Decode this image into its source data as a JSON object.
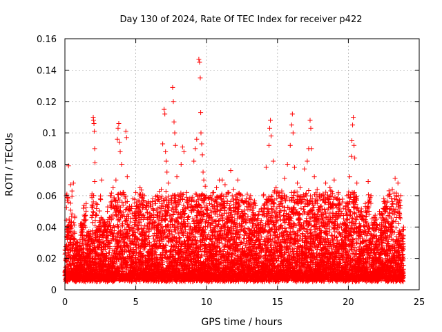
{
  "chart_data": {
    "type": "scatter",
    "title": "Day 130 of 2024, Rate Of TEC Index for receiver p422",
    "xlabel": "GPS time / hours",
    "ylabel": "ROTI / TECUs",
    "xlim": [
      0,
      25
    ],
    "ylim": [
      0,
      0.16
    ],
    "x_ticks": [
      "0",
      "5",
      "10",
      "15",
      "20",
      "25"
    ],
    "y_ticks": [
      "0",
      "0.02",
      "0.04",
      "0.06",
      "0.08",
      "0.1",
      "0.12",
      "0.14",
      "0.16"
    ],
    "grid": true,
    "marker": "+",
    "color": "#ff0000",
    "series": [
      {
        "points": [
          [
            0.05,
            0.025
          ],
          [
            0.1,
            0.06
          ],
          [
            0.25,
            0.079
          ],
          [
            0.3,
            0.045
          ],
          [
            0.4,
            0.067
          ],
          [
            0.5,
            0.063
          ],
          [
            0.55,
            0.035
          ],
          [
            0.6,
            0.068
          ],
          [
            0.7,
            0.047
          ],
          [
            0.9,
            0.03
          ],
          [
            1.1,
            0.042
          ],
          [
            1.3,
            0.052
          ],
          [
            1.5,
            0.055
          ],
          [
            1.7,
            0.036
          ],
          [
            1.9,
            0.06
          ],
          [
            2.0,
            0.11
          ],
          [
            2.02,
            0.108
          ],
          [
            2.05,
            0.106
          ],
          [
            2.08,
            0.101
          ],
          [
            2.1,
            0.09
          ],
          [
            2.12,
            0.081
          ],
          [
            2.1,
            0.069
          ],
          [
            2.2,
            0.055
          ],
          [
            2.5,
            0.058
          ],
          [
            2.6,
            0.07
          ],
          [
            2.8,
            0.043
          ],
          [
            3.0,
            0.05
          ],
          [
            3.2,
            0.06
          ],
          [
            3.4,
            0.065
          ],
          [
            3.6,
            0.07
          ],
          [
            3.7,
            0.096
          ],
          [
            3.75,
            0.103
          ],
          [
            3.8,
            0.106
          ],
          [
            3.85,
            0.094
          ],
          [
            3.9,
            0.088
          ],
          [
            4.0,
            0.08
          ],
          [
            4.1,
            0.062
          ],
          [
            4.3,
            0.101
          ],
          [
            4.35,
            0.097
          ],
          [
            4.4,
            0.072
          ],
          [
            4.6,
            0.052
          ],
          [
            4.8,
            0.058
          ],
          [
            5.0,
            0.062
          ],
          [
            5.3,
            0.065
          ],
          [
            5.6,
            0.06
          ],
          [
            5.9,
            0.055
          ],
          [
            6.2,
            0.058
          ],
          [
            6.5,
            0.06
          ],
          [
            6.8,
            0.064
          ],
          [
            6.9,
            0.093
          ],
          [
            7.0,
            0.115
          ],
          [
            7.05,
            0.112
          ],
          [
            7.1,
            0.088
          ],
          [
            7.15,
            0.082
          ],
          [
            7.2,
            0.075
          ],
          [
            7.3,
            0.068
          ],
          [
            7.6,
            0.129
          ],
          [
            7.65,
            0.12
          ],
          [
            7.7,
            0.107
          ],
          [
            7.75,
            0.1
          ],
          [
            7.8,
            0.092
          ],
          [
            7.9,
            0.072
          ],
          [
            8.1,
            0.06
          ],
          [
            8.2,
            0.08
          ],
          [
            8.3,
            0.091
          ],
          [
            8.4,
            0.088
          ],
          [
            8.6,
            0.062
          ],
          [
            8.9,
            0.058
          ],
          [
            9.1,
            0.082
          ],
          [
            9.2,
            0.09
          ],
          [
            9.3,
            0.096
          ],
          [
            9.45,
            0.147
          ],
          [
            9.5,
            0.145
          ],
          [
            9.55,
            0.135
          ],
          [
            9.58,
            0.113
          ],
          [
            9.6,
            0.1
          ],
          [
            9.65,
            0.093
          ],
          [
            9.7,
            0.086
          ],
          [
            9.75,
            0.075
          ],
          [
            9.8,
            0.07
          ],
          [
            9.9,
            0.066
          ],
          [
            10.1,
            0.058
          ],
          [
            10.3,
            0.06
          ],
          [
            10.5,
            0.062
          ],
          [
            10.7,
            0.065
          ],
          [
            10.9,
            0.07
          ],
          [
            11.1,
            0.07
          ],
          [
            11.3,
            0.067
          ],
          [
            11.5,
            0.062
          ],
          [
            11.7,
            0.076
          ],
          [
            11.9,
            0.064
          ],
          [
            12.2,
            0.07
          ],
          [
            12.5,
            0.06
          ],
          [
            12.8,
            0.058
          ],
          [
            13.1,
            0.06
          ],
          [
            13.4,
            0.055
          ],
          [
            13.7,
            0.05
          ],
          [
            14.0,
            0.06
          ],
          [
            14.2,
            0.078
          ],
          [
            14.4,
            0.092
          ],
          [
            14.45,
            0.103
          ],
          [
            14.5,
            0.108
          ],
          [
            14.55,
            0.098
          ],
          [
            14.7,
            0.082
          ],
          [
            14.9,
            0.065
          ],
          [
            15.1,
            0.062
          ],
          [
            15.3,
            0.063
          ],
          [
            15.5,
            0.071
          ],
          [
            15.7,
            0.08
          ],
          [
            15.9,
            0.092
          ],
          [
            16.0,
            0.105
          ],
          [
            16.05,
            0.112
          ],
          [
            16.1,
            0.1
          ],
          [
            16.2,
            0.078
          ],
          [
            16.4,
            0.068
          ],
          [
            16.6,
            0.065
          ],
          [
            16.9,
            0.077
          ],
          [
            17.1,
            0.082
          ],
          [
            17.2,
            0.09
          ],
          [
            17.3,
            0.108
          ],
          [
            17.35,
            0.103
          ],
          [
            17.4,
            0.09
          ],
          [
            17.6,
            0.072
          ],
          [
            17.8,
            0.064
          ],
          [
            18.1,
            0.06
          ],
          [
            18.4,
            0.068
          ],
          [
            18.7,
            0.065
          ],
          [
            19.0,
            0.07
          ],
          [
            19.3,
            0.062
          ],
          [
            19.6,
            0.056
          ],
          [
            19.9,
            0.06
          ],
          [
            20.1,
            0.072
          ],
          [
            20.2,
            0.085
          ],
          [
            20.25,
            0.095
          ],
          [
            20.3,
            0.105
          ],
          [
            20.35,
            0.11
          ],
          [
            20.4,
            0.092
          ],
          [
            20.45,
            0.084
          ],
          [
            20.6,
            0.068
          ],
          [
            20.9,
            0.05
          ],
          [
            21.2,
            0.055
          ],
          [
            21.4,
            0.069
          ],
          [
            21.6,
            0.06
          ],
          [
            21.9,
            0.045
          ],
          [
            22.2,
            0.05
          ],
          [
            22.5,
            0.058
          ],
          [
            22.8,
            0.06
          ],
          [
            23.1,
            0.064
          ],
          [
            23.3,
            0.071
          ],
          [
            23.5,
            0.068
          ],
          [
            23.7,
            0.06
          ],
          [
            23.9,
            0.04
          ]
        ]
      }
    ]
  }
}
